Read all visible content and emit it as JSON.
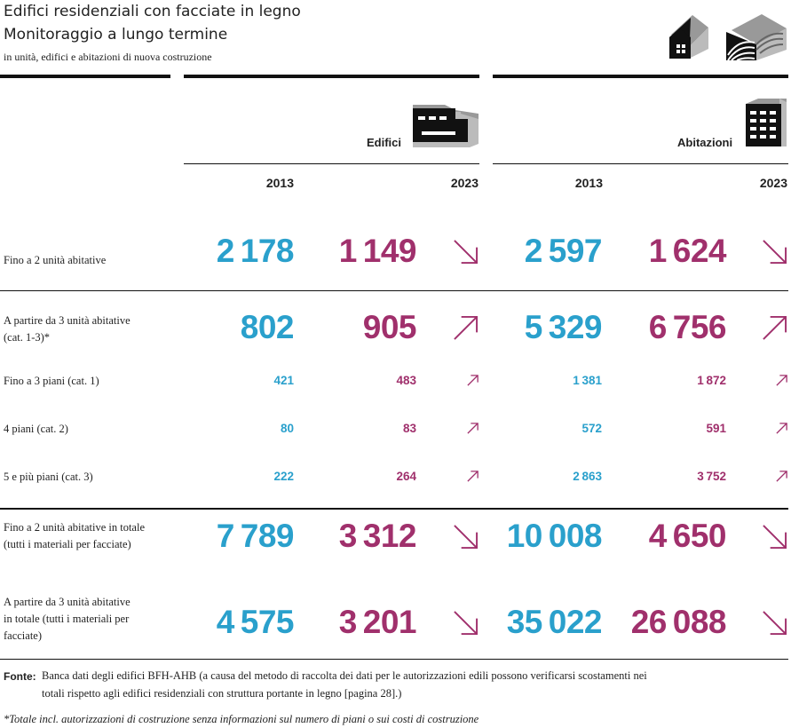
{
  "header": {
    "title_line1": "Edifici residenziali con facciate in legno",
    "title_line2": "Monitoraggio a lungo termine",
    "subtitle": "in unità, edifici e abitazioni di nuova costruzione"
  },
  "columns": {
    "edifici_label": "Edifici",
    "abitazioni_label": "Abitazioni",
    "years": [
      "2013",
      "2023",
      "2013",
      "2023"
    ]
  },
  "colors": {
    "y2013": "#2aa0cc",
    "y2023": "#a0306c"
  },
  "rows": [
    {
      "label_lines": [
        "Fino a 2 unità abitative"
      ],
      "size": "big",
      "edifici_2013": "2178",
      "edifici_2023": "1149",
      "edifici_trend": "down",
      "abitazioni_2013": "2597",
      "abitazioni_2023": "1624",
      "abitazioni_trend": "down"
    },
    {
      "label_lines": [
        "A partire da 3 unità abitative",
        "(cat. 1-3)*"
      ],
      "size": "big",
      "edifici_2013": "802",
      "edifici_2023": "905",
      "edifici_trend": "up",
      "abitazioni_2013": "5329",
      "abitazioni_2023": "6756",
      "abitazioni_trend": "up"
    },
    {
      "label_lines": [
        "Fino a 3 piani (cat. 1)"
      ],
      "size": "small",
      "edifici_2013": "421",
      "edifici_2023": "483",
      "edifici_trend": "up",
      "abitazioni_2013": "1381",
      "abitazioni_2023": "1872",
      "abitazioni_trend": "up"
    },
    {
      "label_lines": [
        "4 piani (cat. 2)"
      ],
      "size": "small",
      "edifici_2013": "80",
      "edifici_2023": "83",
      "edifici_trend": "up",
      "abitazioni_2013": "572",
      "abitazioni_2023": "591",
      "abitazioni_trend": "up"
    },
    {
      "label_lines": [
        "5 e più piani (cat. 3)"
      ],
      "size": "small",
      "edifici_2013": "222",
      "edifici_2023": "264",
      "edifici_trend": "up",
      "abitazioni_2013": "2863",
      "abitazioni_2023": "3752",
      "abitazioni_trend": "up"
    },
    {
      "label_lines": [
        "Fino a 2 unità abitative in totale",
        "(tutti i materiali per facciate)"
      ],
      "size": "big",
      "edifici_2013": "7789",
      "edifici_2023": "3312",
      "edifici_trend": "down",
      "abitazioni_2013": "10008",
      "abitazioni_2023": "4650",
      "abitazioni_trend": "down"
    },
    {
      "label_lines": [
        "A partire da 3 unità abitative",
        "in totale (tutti i materiali per",
        "facciate)"
      ],
      "size": "big",
      "edifici_2013": "4575",
      "edifici_2023": "3201",
      "edifici_trend": "down",
      "abitazioni_2013": "35022",
      "abitazioni_2023": "26088",
      "abitazioni_trend": "down"
    }
  ],
  "footer": {
    "source_label": "Fonte:",
    "source_line1": "Banca dati degli edifici BFH-AHB (a causa del metodo di raccolta dei dati per le autorizzazioni edili possono verificarsi scostamenti nei",
    "source_line2": "totali rispetto agli edifici residenziali con struttura portante in legno [pagina 28].)",
    "note": "*Totale incl. autorizzazioni di costruzione senza informazioni sul numero di piani o sui costi di costruzione"
  },
  "icons": [
    "house-icon",
    "wood-facade-icon",
    "building-icon",
    "apartment-icon",
    "trend-arrow-icon"
  ]
}
